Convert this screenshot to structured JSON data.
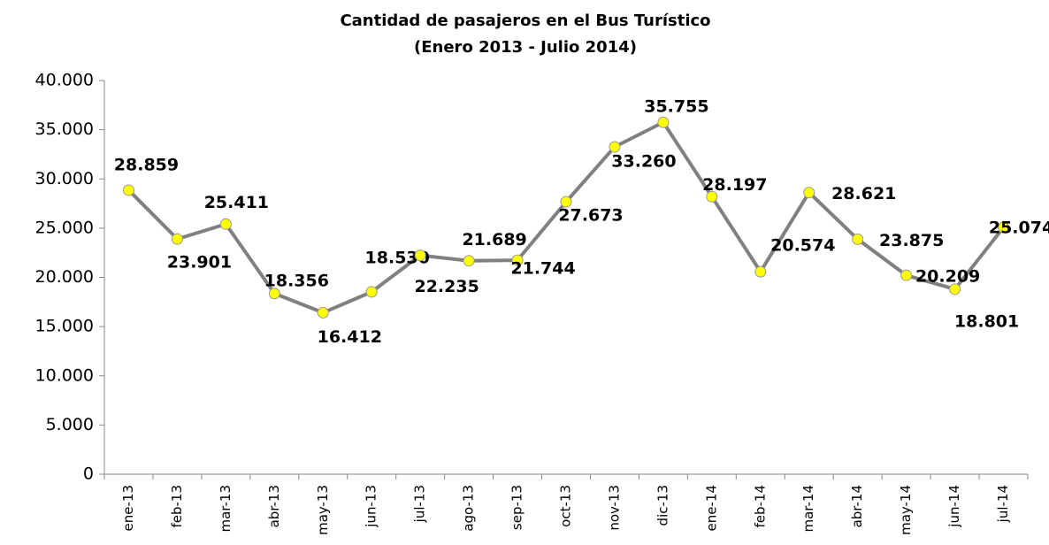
{
  "chart_data": {
    "type": "line",
    "title": "Cantidad de pasajeros en el Bus Turístico",
    "subtitle": "(Enero 2013 - Julio 2014)",
    "categories": [
      "ene-13",
      "feb-13",
      "mar-13",
      "abr-13",
      "may-13",
      "jun-13",
      "jul-13",
      "ago-13",
      "sep-13",
      "oct-13",
      "nov-13",
      "dic-13",
      "ene-14",
      "feb-14",
      "mar-14",
      "abr-14",
      "may-14",
      "jun-14",
      "jul-14"
    ],
    "series": [
      {
        "name": "Pasajeros",
        "color": "#808080",
        "values": [
          28859,
          23901,
          25411,
          18356,
          16412,
          18530,
          22235,
          21689,
          21744,
          27673,
          33260,
          35755,
          28197,
          20574,
          28621,
          23875,
          20209,
          18801,
          25074
        ],
        "value_labels": [
          "28.859",
          "23.901",
          "25.411",
          "18.356",
          "16.412",
          "18.530",
          "22.235",
          "21.689",
          "21.744",
          "27.673",
          "33.260",
          "35.755",
          "28.197",
          "20.574",
          "28.621",
          "23.875",
          "20.209",
          "18.801",
          "25.074"
        ]
      }
    ],
    "marker_color": "#ffff00",
    "ylim": [
      0,
      40000
    ],
    "yticks": [
      0,
      {
        "value": 5000,
        "label": "5.000"
      },
      {
        "value": 10000,
        "label": "10.000"
      },
      {
        "value": 15000,
        "label": "15.000"
      },
      {
        "value": 20000,
        "label": "20.000"
      },
      {
        "value": 25000,
        "label": "25.000"
      },
      {
        "value": 30000,
        "label": "30.000"
      },
      {
        "value": 35000,
        "label": "35.000"
      },
      {
        "value": 40000,
        "label": "40.000"
      }
    ],
    "grid": false
  }
}
